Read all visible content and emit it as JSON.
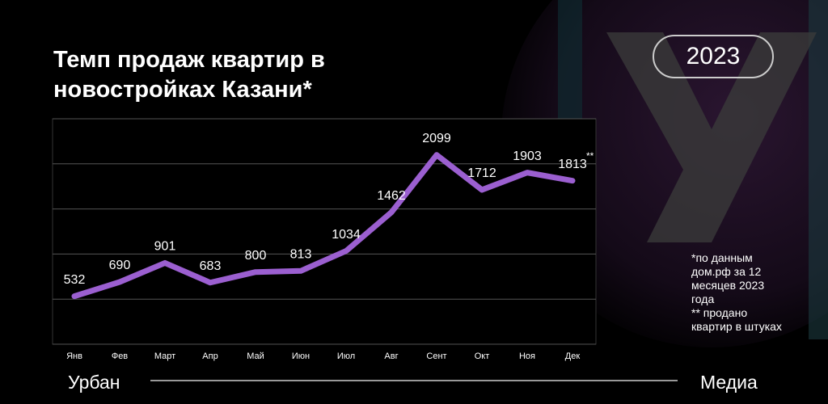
{
  "header": {
    "title": "Темп продаж квартир в новостройках Казани*",
    "badge": "2023"
  },
  "chart_data": {
    "type": "line",
    "categories": [
      "Янв",
      "Фев",
      "Март",
      "Апр",
      "Май",
      "Июн",
      "Июл",
      "Авг",
      "Сент",
      "Окт",
      "Ноя",
      "Дек"
    ],
    "series": [
      {
        "color": "#9b5fd0",
        "values": [
          532,
          690,
          901,
          683,
          800,
          813,
          1034,
          1462,
          2099,
          1712,
          1903,
          1813
        ]
      }
    ],
    "annotation": "**",
    "ylim": [
      0,
      2500
    ],
    "yticks": [
      0,
      500,
      1000,
      1500,
      2000,
      2500
    ],
    "grid": true
  },
  "footnote": [
    "*по данным дом.рф за 12 месяцев 2023 года",
    "** продано квартир в штуках"
  ],
  "footer": {
    "left": "Урбан",
    "right": "Медиа"
  }
}
